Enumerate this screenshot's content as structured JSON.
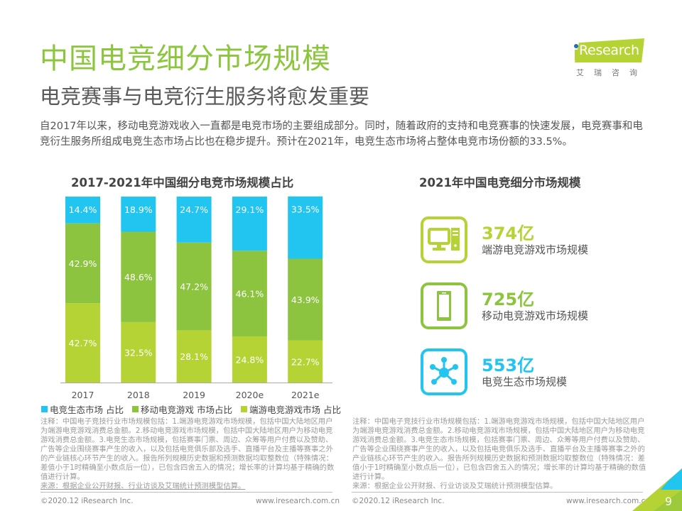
{
  "header": {
    "title": "中国电竞细分市场规模",
    "subtitle": "电竞赛事与电竞衍生服务将愈发重要",
    "logo_text": "Research",
    "logo_cn": "艾瑞咨询",
    "intro": "自2017年以来，移动电竞游戏收入一直都是电竞市场的主要组成部分。同时，随着政府的支持和电竞赛事的快速发展，电竞赛事和电竞衍生服务所组成电竞生态市场占比也在稳步提升。预计在2021年，电竞生态市场将占整体电竞市场份额的33.5%。"
  },
  "colors": {
    "title": "#8cc63f",
    "ecosystem": "#22c5f0",
    "mobile": "#8cc43f",
    "pc": "#b5d334"
  },
  "chart_data": {
    "type": "bar",
    "stacked": true,
    "title": "2017-2021年中国细分电竞市场规模占比",
    "categories": [
      "2017",
      "2018",
      "2019",
      "2020e",
      "2021e"
    ],
    "series": [
      {
        "name": "端游电竞游戏市场 占比",
        "key": "pc",
        "values": [
          42.7,
          32.5,
          28.1,
          24.8,
          22.7
        ]
      },
      {
        "name": "移动电竞游戏 市场占比",
        "key": "mobile",
        "values": [
          42.9,
          48.6,
          47.2,
          46.1,
          43.9
        ]
      },
      {
        "name": "电竞生态市场 占比",
        "key": "ecosystem",
        "values": [
          14.4,
          18.9,
          24.7,
          29.1,
          33.5
        ]
      }
    ],
    "legend_order": [
      "电竞生态市场 占比",
      "移动电竞游戏 市场占比",
      "端游电竞游戏市场 占比"
    ],
    "unit": "%",
    "xlabel": "",
    "ylabel": "",
    "ylim": [
      0,
      100
    ],
    "grid": false,
    "legend": "bottom"
  },
  "right_panel": {
    "title": "2021年中国电竞细分市场规模",
    "stats": [
      {
        "value": "374亿",
        "label": "端游电竞游戏市场规模",
        "icon": "desktop-computer-icon",
        "color": "#b5d334"
      },
      {
        "value": "725亿",
        "label": "移动电竞游戏市场规模",
        "icon": "smartphone-icon",
        "color": "#8cc43f"
      },
      {
        "value": "553亿",
        "label": "电竞生态市场规模",
        "icon": "network-hub-icon",
        "color": "#22c5f0"
      }
    ]
  },
  "notes": {
    "left": "注释：中国电子竞技行业市场规模包括：1.端游电竞游戏市场规模，包括中国大陆地区用户为端游电竞游戏消费总金额。2.移动电竞游戏市场规模，包括中国大陆地区用户为移动电竞游戏消费总金额。3.电竞生态市场规模，包括赛事门票、周边、众筹等用户付费以及赞助、广告等企业围绕赛事产生的收入，以及包括电竞俱乐部及选手、直播平台及主播等赛事之外的产业链核心环节产生的收入。报告所列规模历史数据和预测数据均取整数位（特殊情况：差值小于1时精确至小数点后一位），已包含四舍五入的情况；增长率的计算均基于精确的数值进行计算。",
    "left_source": "来源：根据企业公开财报、行业访谈及艾瑞统计预测模型估算。",
    "right": "注释：中国电子竞技行业市场规模包括：1.端游电竞游戏市场规模，包括中国大陆地区用户为端游电竞游戏消费总金额。2.移动电竞游戏市场规模，包括中国大陆地区用户为移动电竞游戏消费总金额。3.电竞生态市场规模，包括赛事门票、周边、众筹等用户付费以及赞助、广告等企业围绕赛事产生的收入，以及包括电竞俱乐及选手、直播平台及主播等赛事之外的产业链核心环节产生的收入。报告所列规模历史数据和预测数据均取整数位（特殊情况：差值小于1时精确至小数点后一位），已包含四舍五入的情况；增长率的计算均基于精确的数值进行计算。",
    "right_source": "来源：根据企业公开财报、行业访谈及艾瑞统计预测模型估算。"
  },
  "footer": {
    "copyright": "©2020.12 iResearch Inc.",
    "url": "www.iresearch.com.cn",
    "page": "9"
  }
}
